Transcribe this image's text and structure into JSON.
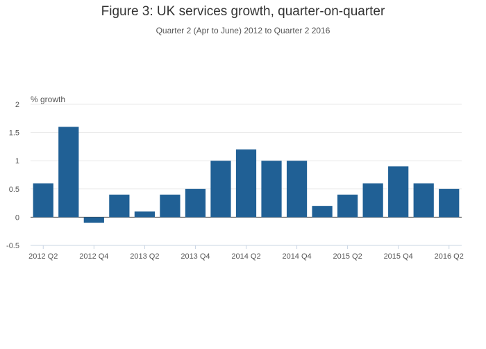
{
  "chart_data": {
    "type": "bar",
    "title": "Figure 3: UK services growth, quarter-on-quarter",
    "subtitle": "Quarter 2 (Apr to June) 2012 to Quarter 2 2016",
    "ylabel": "% growth",
    "xlabel": "",
    "ylim": [
      -0.5,
      2
    ],
    "yticks": [
      "2",
      "1.5",
      "1",
      "0.5",
      "0",
      "-0.5"
    ],
    "ytick_values": [
      2,
      1.5,
      1,
      0.5,
      0,
      -0.5
    ],
    "grid": true,
    "categories": [
      "2012 Q2",
      "2012 Q3",
      "2012 Q4",
      "2013 Q1",
      "2013 Q2",
      "2013 Q3",
      "2013 Q4",
      "2014 Q1",
      "2014 Q2",
      "2014 Q3",
      "2014 Q4",
      "2015 Q1",
      "2015 Q2",
      "2015 Q3",
      "2015 Q4",
      "2016 Q1",
      "2016 Q2"
    ],
    "values": [
      0.6,
      1.6,
      -0.1,
      0.4,
      0.1,
      0.4,
      0.5,
      1.0,
      1.2,
      1.0,
      1.0,
      0.2,
      0.4,
      0.6,
      0.9,
      0.6,
      0.5
    ],
    "xtick_labels": [
      "2012 Q2",
      "2012 Q4",
      "2013 Q2",
      "2013 Q4",
      "2014 Q2",
      "2014 Q4",
      "2015 Q2",
      "2015 Q4",
      "2016 Q2"
    ],
    "bar_color": "#206095"
  }
}
